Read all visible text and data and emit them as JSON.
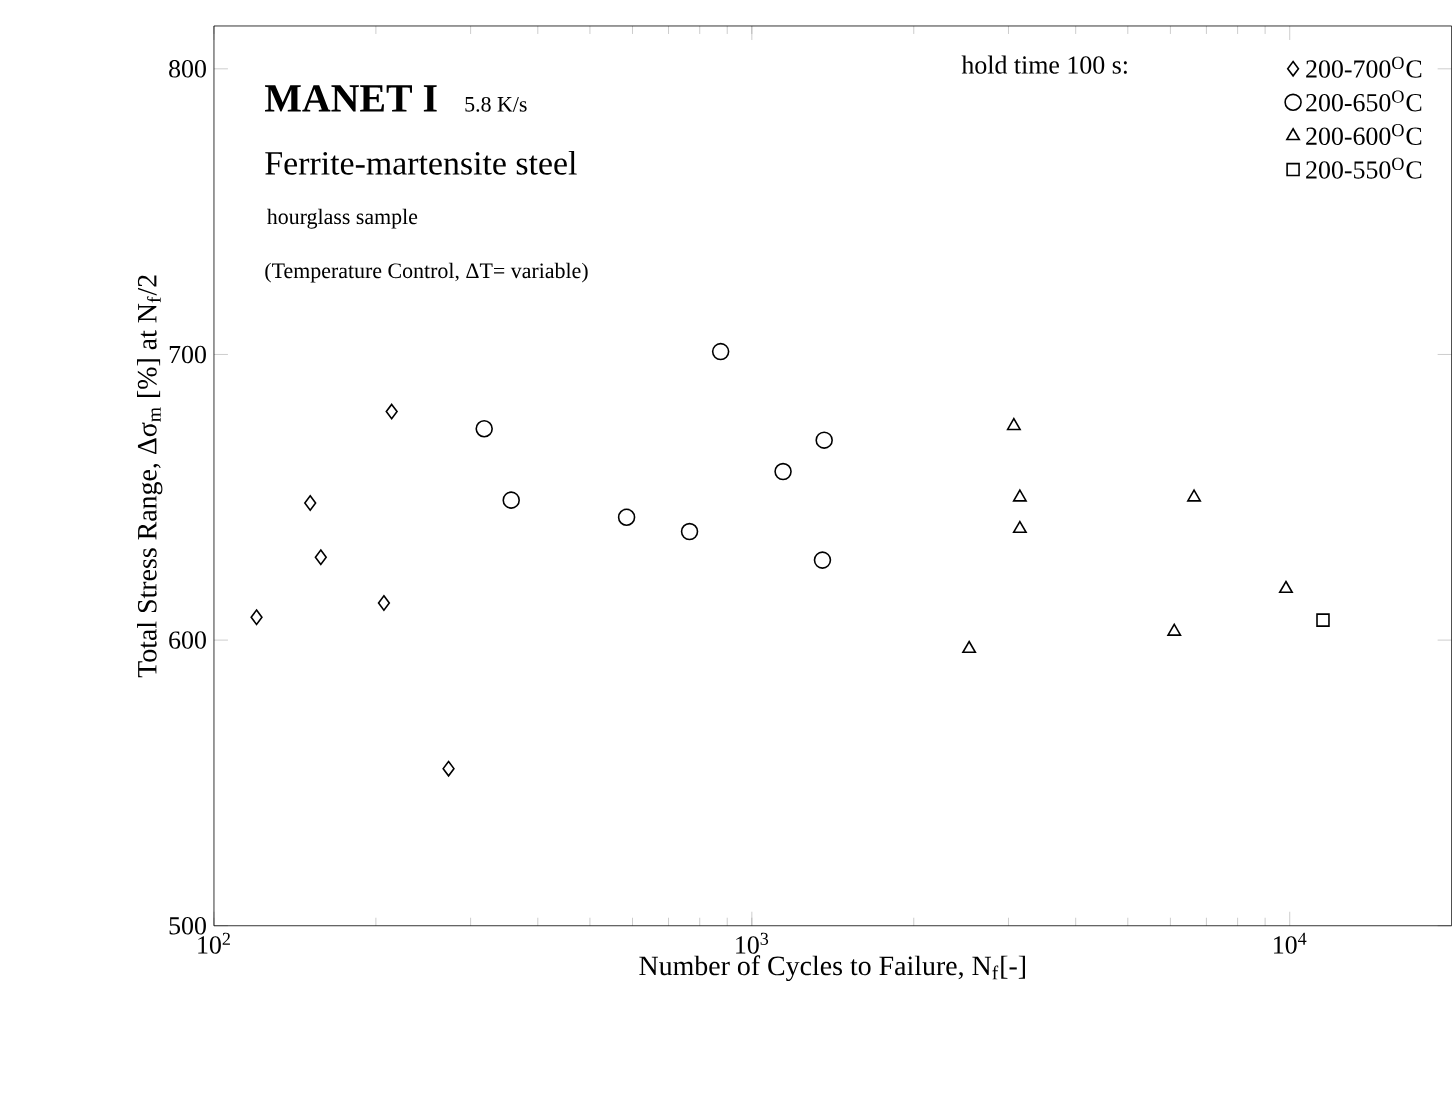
{
  "chart_data": {
    "type": "scatter",
    "title": "MANET I",
    "subtitle": "Ferrite-martensite steel",
    "annotations": [
      "5.8 K/s",
      "hourglass sample",
      "(Temperature Control, ΔT= variable)"
    ],
    "xlabel": "Number of Cycles to Failure, N$_{f}$[-]",
    "ylabel": "Total Stress Range, Δσ$_{m}$ [%] at N$_{f}$/2",
    "legend_title": "hold time 100 s:",
    "legend": "top right",
    "log": "x",
    "xlim": [
      100,
      20000
    ],
    "ylim": [
      500,
      815
    ],
    "xticks": [
      {
        "value": 100,
        "label": "10$^{2}$"
      },
      {
        "value": 1000,
        "label": "10$^{3}$"
      },
      {
        "value": 10000,
        "label": "10$^{4}$"
      }
    ],
    "yticks": [
      500,
      600,
      700,
      800
    ],
    "grid": false,
    "series": [
      {
        "name": "200-700$^{O}$C",
        "color": "#000000",
        "marker": "diamond",
        "x": [
          120,
          151,
          158,
          214,
          207,
          273
        ],
        "values": [
          608,
          648,
          629,
          680,
          613,
          555
        ]
      },
      {
        "name": "200-650$^{O}$C",
        "color": "#000000",
        "marker": "circle",
        "x": [
          318,
          357,
          585,
          766,
          875,
          1143,
          1363,
          1353
        ],
        "values": [
          674,
          649,
          643,
          638,
          701,
          659,
          670,
          628
        ]
      },
      {
        "name": "200-600$^{O}$C",
        "color": "#000000",
        "marker": "triangle",
        "x": [
          3070,
          3150,
          3150,
          6640,
          2535,
          6100,
          9840
        ],
        "values": [
          675,
          650,
          639,
          650,
          597,
          603,
          618
        ]
      },
      {
        "name": "200-550$^{O}$C",
        "color": "#000000",
        "marker": "square",
        "x": [
          11530
        ],
        "values": [
          607
        ]
      }
    ]
  }
}
